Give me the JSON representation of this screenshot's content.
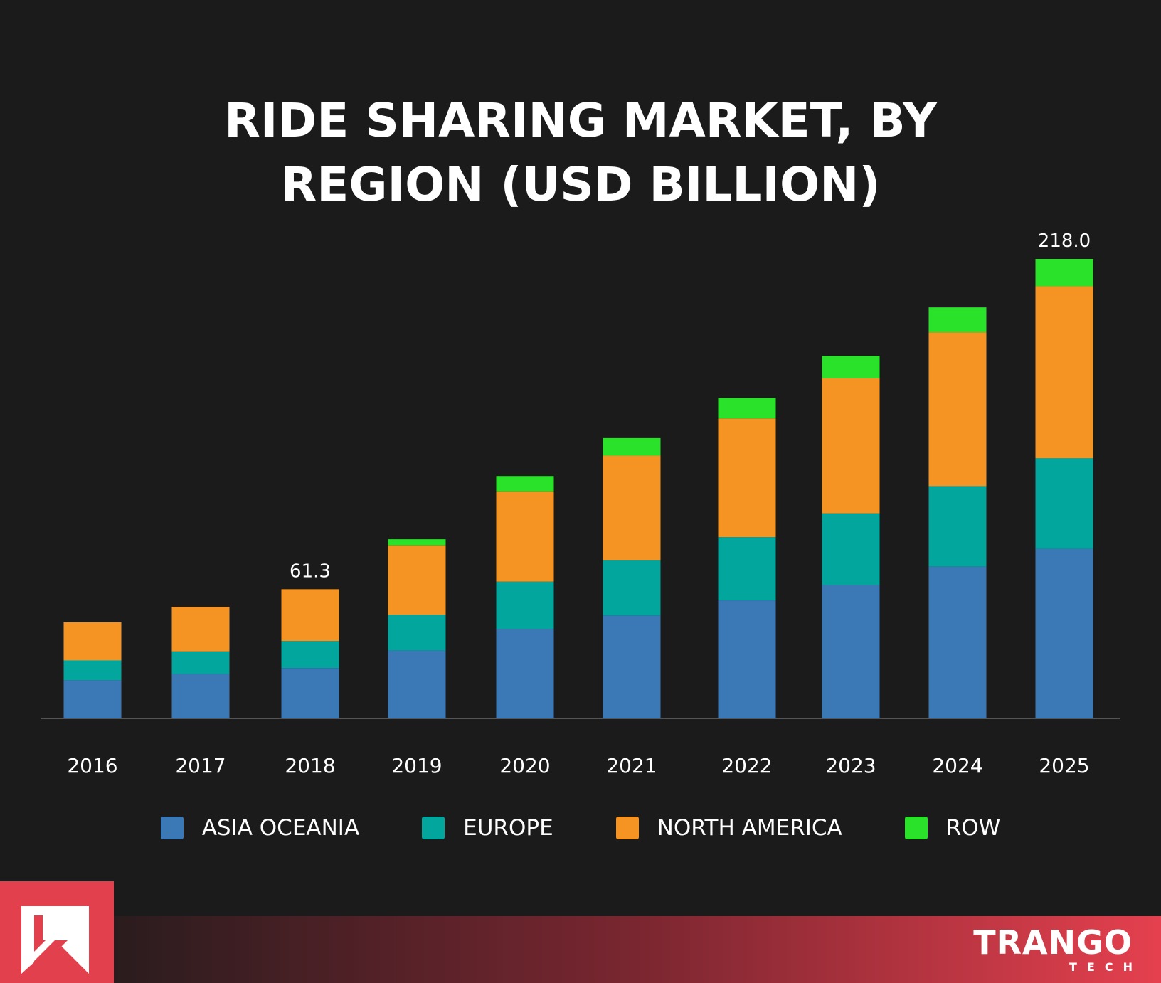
{
  "title_line1": "RIDE SHARING MARKET, BY",
  "title_line2": "REGION (USD BILLION)",
  "chart_data": {
    "type": "bar",
    "stacked": true,
    "title": "RIDE SHARING MARKET, BY REGION (USD BILLION)",
    "categories": [
      "2016",
      "2017",
      "2018",
      "2019",
      "2020",
      "2021",
      "2022",
      "2023",
      "2024",
      "2025"
    ],
    "series": [
      {
        "name": "ASIA OCEANIA",
        "color": "#3b78b6",
        "values": [
          18.1,
          21.1,
          23.9,
          32.2,
          42.4,
          48.9,
          56.0,
          63.3,
          72.0,
          80.5
        ]
      },
      {
        "name": "EUROPE",
        "color": "#02a69d",
        "values": [
          9.4,
          10.7,
          12.8,
          17.0,
          22.5,
          26.1,
          30.0,
          34.0,
          38.2,
          42.9
        ]
      },
      {
        "name": "NORTH AMERICA",
        "color": "#f59422",
        "values": [
          18.1,
          21.1,
          24.6,
          32.9,
          42.8,
          49.7,
          56.3,
          64.1,
          73.0,
          81.6
        ]
      },
      {
        "name": "ROW",
        "color": "#2ae22a",
        "values": [
          0,
          0,
          0,
          2.9,
          7.3,
          8.3,
          9.7,
          10.6,
          11.8,
          13.0
        ]
      }
    ],
    "data_labels": [
      {
        "category": "2018",
        "text": "61.3"
      },
      {
        "category": "2025",
        "text": "218.0"
      }
    ],
    "ylim": [
      0,
      218
    ],
    "legend": "bottom",
    "grid": false
  },
  "brand": {
    "name": "TRANGO",
    "sub": "TECH",
    "colors": {
      "accent": "#e2404c"
    }
  }
}
